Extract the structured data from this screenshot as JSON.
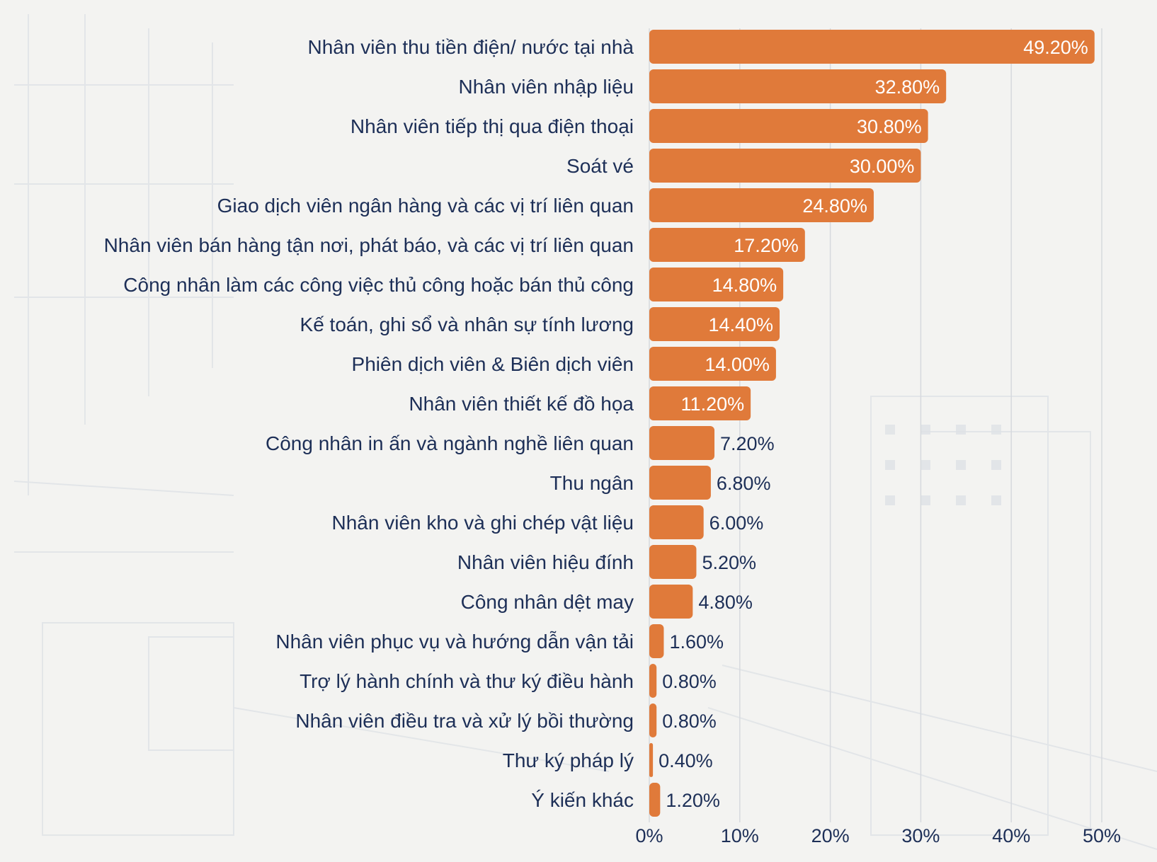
{
  "colors": {
    "bar": "#e07a3a",
    "text": "#1d2f57",
    "grid": "#d6d9de",
    "background": "#f3f3f1"
  },
  "chart_data": {
    "type": "bar",
    "orientation": "horizontal",
    "categories": [
      "Nhân viên thu tiền điện/ nước tại nhà",
      "Nhân viên nhập liệu",
      "Nhân viên tiếp thị qua điện thoại",
      "Soát vé",
      "Giao dịch viên ngân hàng và các vị trí liên quan",
      "Nhân viên bán hàng tận nơi, phát báo, và các vị trí liên quan",
      "Công nhân làm các công việc thủ công hoặc bán thủ công",
      "Kế toán, ghi sổ và nhân sự tính lương",
      "Phiên dịch viên & Biên dịch viên",
      "Nhân viên thiết kế đồ họa",
      "Công nhân in ấn và ngành nghề liên quan",
      "Thu ngân",
      "Nhân viên kho và ghi chép vật liệu",
      "Nhân viên hiệu đính",
      "Công nhân dệt may",
      "Nhân viên phục vụ và hướng dẫn vận tải",
      "Trợ lý hành chính và thư ký điều hành",
      "Nhân viên điều tra và xử lý bồi thường",
      "Thư ký pháp lý",
      "Ý kiến khác"
    ],
    "values": [
      49.2,
      32.8,
      30.8,
      30.0,
      24.8,
      17.2,
      14.8,
      14.4,
      14.0,
      11.2,
      7.2,
      6.8,
      6.0,
      5.2,
      4.8,
      1.6,
      0.8,
      0.8,
      0.4,
      1.2
    ],
    "value_labels": [
      "49.20%",
      "32.80%",
      "30.80%",
      "30.00%",
      "24.80%",
      "17.20%",
      "14.80%",
      "14.40%",
      "14.00%",
      "11.20%",
      "7.20%",
      "6.80%",
      "6.00%",
      "5.20%",
      "4.80%",
      "1.60%",
      "0.80%",
      "0.80%",
      "0.40%",
      "1.20%"
    ],
    "xlim": [
      0,
      50
    ],
    "xticks": [
      0,
      10,
      20,
      30,
      40,
      50
    ],
    "xtick_labels": [
      "0%",
      "10%",
      "20%",
      "30%",
      "40%",
      "50%"
    ],
    "grid": true,
    "legend": false
  }
}
